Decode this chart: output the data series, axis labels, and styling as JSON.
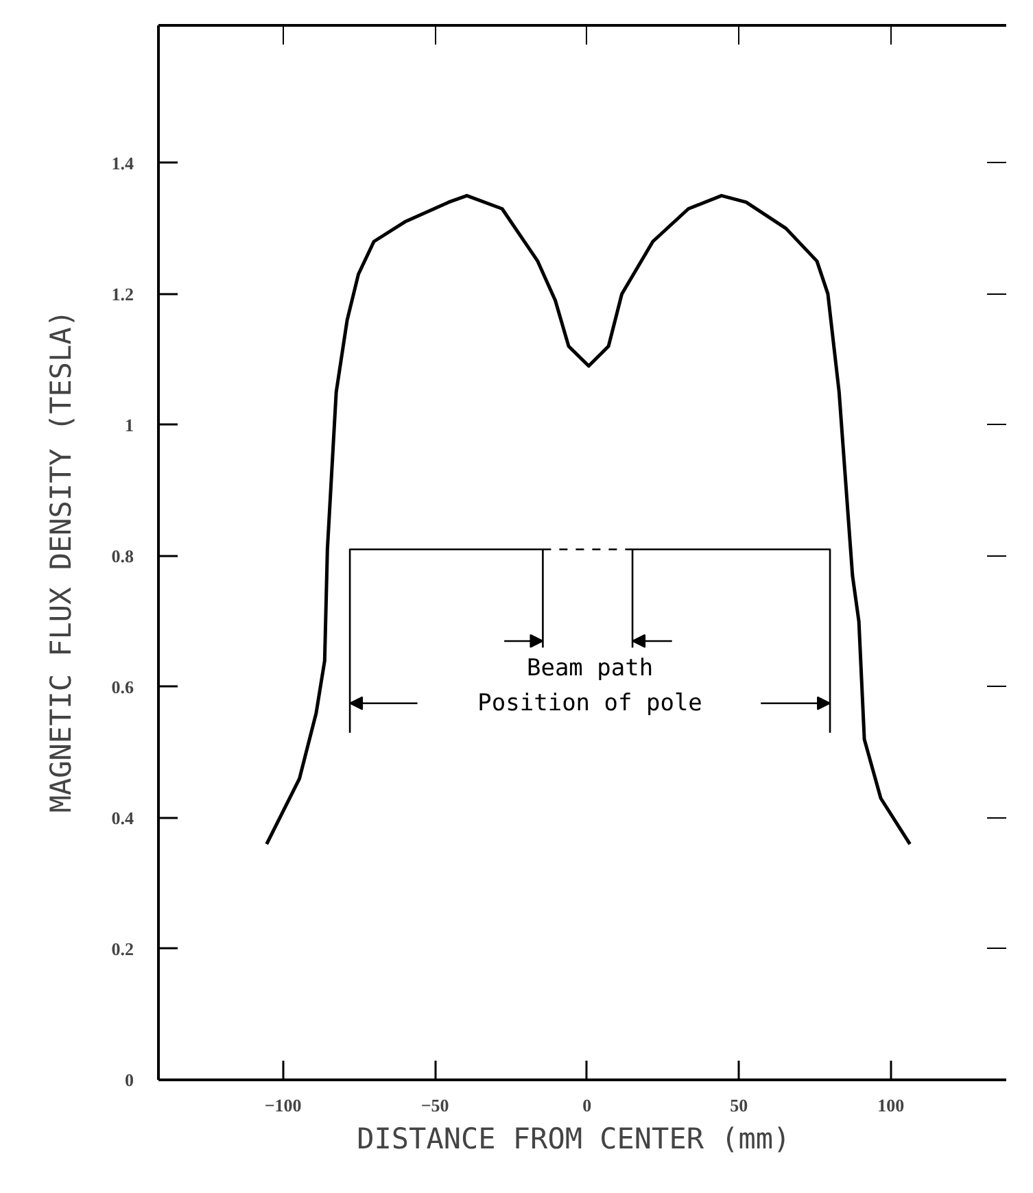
{
  "chart_data": {
    "type": "line",
    "xlabel": "DISTANCE FROM CENTER  (mm)",
    "ylabel": "MAGNETIC FLUX DENSITY  (TESLA)",
    "series": [
      {
        "color": "#000000",
        "x": [
          -105.4,
          -94.6,
          -89.1,
          -86.3,
          -85.4,
          -82.5,
          -78.9,
          -75.2,
          -70.1,
          -59.9,
          -45.5,
          -39.5,
          -27.9,
          -16.2,
          -10.4,
          -6,
          0.6,
          7.1,
          11.5,
          21.7,
          33.4,
          44.3,
          52.4,
          65.5,
          75.7,
          79.3,
          83,
          87.4,
          89.5,
          91.3,
          96.7,
          106.3
        ],
        "values": [
          0.36,
          0.46,
          0.56,
          0.64,
          0.81,
          1.05,
          1.16,
          1.23,
          1.28,
          1.31,
          1.34,
          1.35,
          1.33,
          1.25,
          1.19,
          1.12,
          1.09,
          1.12,
          1.2,
          1.28,
          1.33,
          1.35,
          1.34,
          1.3,
          1.25,
          1.2,
          1.05,
          0.77,
          0.7,
          0.52,
          0.43,
          0.36
        ]
      },
      {
        "color": "#000000",
        "x": [
          -78,
          -78,
          -14.5,
          -14.5
        ],
        "values": [
          0.53,
          0.81,
          0.81,
          0.66
        ]
      },
      {
        "color": "#000000",
        "x": [
          -14.5,
          15
        ],
        "values": [
          0.81,
          0.81
        ],
        "line_style": "dashed"
      },
      {
        "color": "#000000",
        "x": [
          15,
          15,
          80,
          80
        ],
        "values": [
          0.66,
          0.81,
          0.81,
          0.53
        ]
      }
    ],
    "annotations": [
      "Beam path",
      "Position of pole"
    ],
    "xlim": [
      -141,
      138
    ],
    "ylim": [
      0,
      1.61
    ],
    "xticks": [
      -100,
      -50,
      0,
      50,
      100
    ],
    "yticks": [
      0,
      0.2,
      0.4,
      0.6,
      0.8,
      1.0,
      1.2,
      1.4
    ],
    "grid": false
  }
}
